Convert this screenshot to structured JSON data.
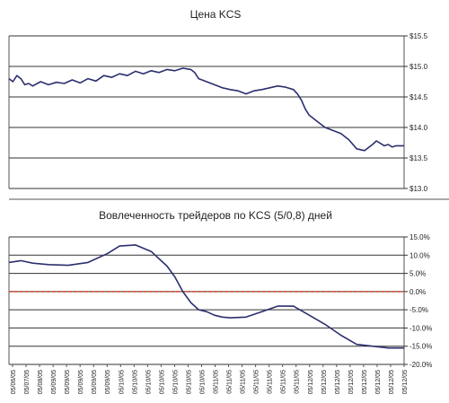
{
  "chart_data": [
    {
      "type": "line",
      "title": "Цена KCS",
      "ylim": [
        13.0,
        15.5
      ],
      "yticks": [
        13.0,
        13.5,
        14.0,
        14.5,
        15.0,
        15.5
      ],
      "ytick_labels": [
        "$13.0",
        "$13.5",
        "$14.0",
        "$14.5",
        "$15.0",
        "$15.5"
      ],
      "grid": "horizontal",
      "line_color": "#2b2f6e",
      "series": [
        {
          "x": [
            0,
            1,
            2,
            3,
            4,
            5,
            6,
            8,
            10,
            12,
            14,
            16,
            18,
            20,
            22,
            24,
            26,
            28,
            30,
            32,
            34,
            36,
            38,
            40,
            42,
            44,
            46,
            47,
            48,
            50,
            52,
            54,
            56,
            58,
            60,
            62,
            64,
            66,
            68,
            70,
            72,
            73,
            74,
            75,
            76,
            78,
            80,
            82,
            84,
            86,
            88,
            90,
            92,
            93,
            94,
            95,
            96,
            97,
            98,
            99,
            100
          ],
          "values": [
            14.8,
            14.75,
            14.85,
            14.8,
            14.7,
            14.72,
            14.68,
            14.75,
            14.7,
            14.74,
            14.72,
            14.78,
            14.73,
            14.8,
            14.76,
            14.85,
            14.82,
            14.88,
            14.85,
            14.92,
            14.88,
            14.93,
            14.9,
            14.95,
            14.93,
            14.97,
            14.95,
            14.9,
            14.8,
            14.75,
            14.7,
            14.65,
            14.62,
            14.6,
            14.55,
            14.6,
            14.62,
            14.65,
            14.68,
            14.66,
            14.62,
            14.55,
            14.45,
            14.3,
            14.2,
            14.1,
            14.0,
            13.95,
            13.9,
            13.8,
            13.65,
            13.62,
            13.72,
            13.78,
            13.74,
            13.7,
            13.72,
            13.68,
            13.7,
            13.7,
            13.7
          ]
        }
      ]
    },
    {
      "type": "line",
      "title": "Вовлеченность трейдеров по KCS (5/0,8) дней",
      "ylim": [
        -20.0,
        15.0
      ],
      "yticks": [
        15.0,
        10.0,
        5.0,
        0.0,
        -5.0,
        -10.0,
        -15.0,
        -20.0
      ],
      "ytick_labels": [
        "15.0%",
        "10.0%",
        "5.0%",
        "0.0%",
        "-5.0%",
        "-10.0%",
        "-15.0%",
        "-20.0%"
      ],
      "grid": "horizontal",
      "line_color": "#2b2f6e",
      "zero_line_color": "#d9412a",
      "series": [
        {
          "x": [
            0,
            3,
            6,
            10,
            15,
            20,
            25,
            28,
            32,
            36,
            40,
            42,
            44,
            46,
            48,
            50,
            52,
            54,
            56,
            60,
            64,
            68,
            72,
            76,
            80,
            84,
            88,
            92,
            96,
            100
          ],
          "values": [
            8,
            8.5,
            7.8,
            7.4,
            7.2,
            8.0,
            10.5,
            12.5,
            12.8,
            11.0,
            7.0,
            4.0,
            0.0,
            -3.0,
            -5.0,
            -5.5,
            -6.5,
            -7.0,
            -7.2,
            -7.0,
            -5.5,
            -4.0,
            -4.0,
            -6.5,
            -9.0,
            -12.0,
            -14.5,
            -15.0,
            -15.5,
            -15.5
          ]
        }
      ],
      "xtick_labels": [
        "05/06/05",
        "05/07/05",
        "05/08/05",
        "05/09/05",
        "05/09/05",
        "05/09/05",
        "05/09/05",
        "05/09/05",
        "05/10/05",
        "05/10/05",
        "05/10/05",
        "05/10/05",
        "05/10/05",
        "05/10/05",
        "05/10/05",
        "05/11/05",
        "05/11/05",
        "05/11/05",
        "05/11/05",
        "05/11/05",
        "05/11/05",
        "05/11/05",
        "05/12/05",
        "05/12/05",
        "05/12/05",
        "05/12/05",
        "05/12/05",
        "05/12/05",
        "05/12/05",
        "05/12/05"
      ]
    }
  ]
}
